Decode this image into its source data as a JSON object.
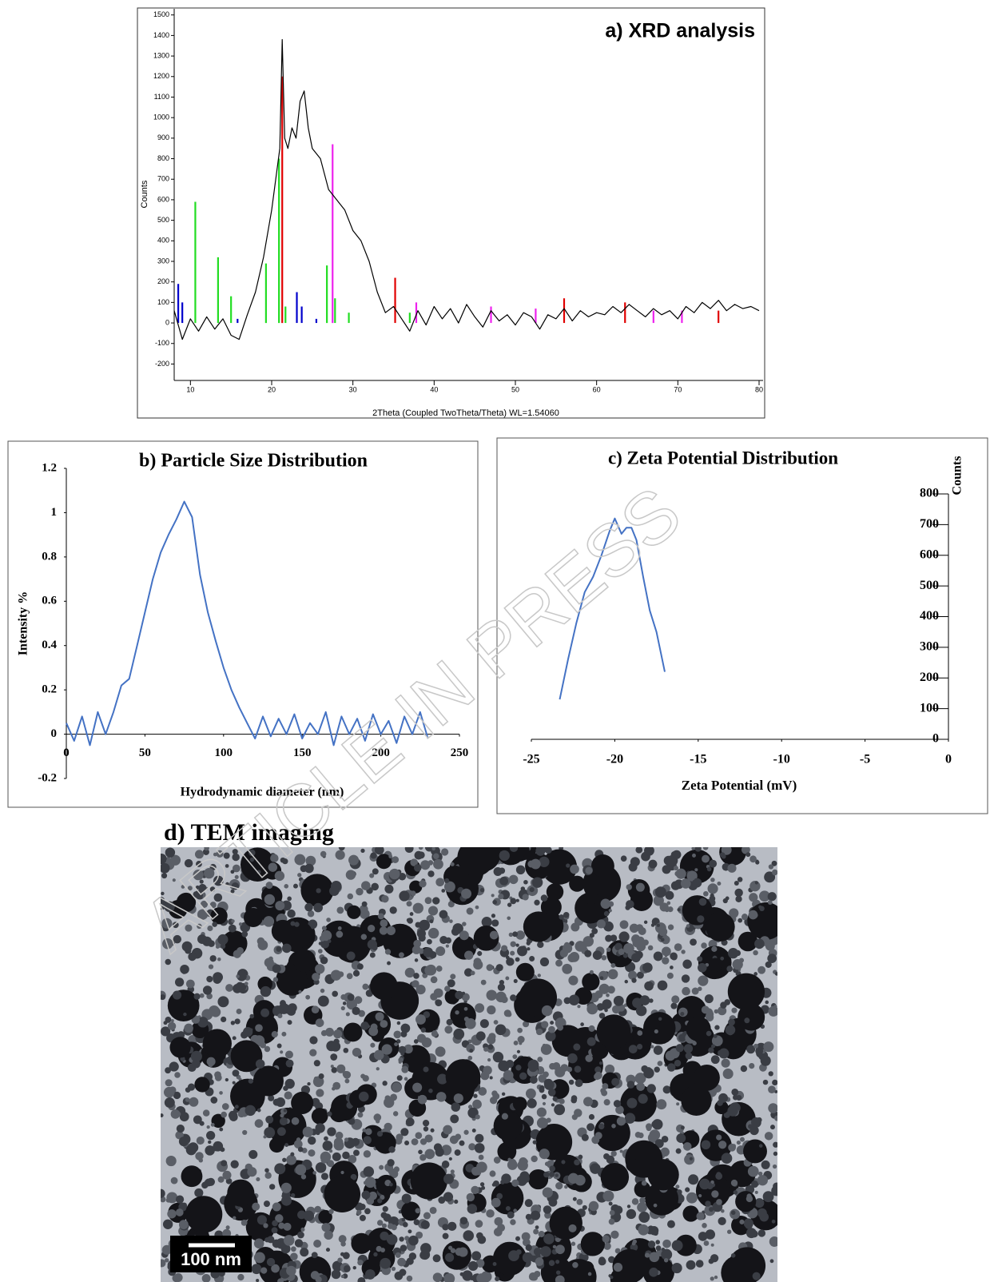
{
  "chart_data": [
    {
      "type": "line",
      "title": "a) XRD analysis",
      "x_label": "2Theta (Coupled TwoTheta/Theta) WL=1.54060",
      "y_label": "Counts",
      "xlim": [
        8,
        80
      ],
      "ylim": [
        -280,
        1530
      ],
      "xticks": [
        10,
        20,
        30,
        40,
        50,
        60,
        70,
        80
      ],
      "yticks": [
        -200,
        -100,
        0,
        100,
        200,
        300,
        400,
        500,
        600,
        700,
        800,
        900,
        1000,
        1100,
        1200,
        1300,
        1400,
        1500
      ],
      "series": [
        {
          "color": "#000000",
          "mode": "line",
          "x": [
            8,
            9,
            10,
            11,
            12,
            13,
            14,
            15,
            16,
            17,
            18,
            19,
            20,
            20.5,
            21,
            21.3,
            21.6,
            22,
            22.5,
            23,
            23.5,
            24,
            24.5,
            25,
            26,
            27,
            28,
            29,
            30,
            31,
            32,
            33,
            34,
            35,
            36,
            37,
            38,
            39,
            40,
            41,
            42,
            43,
            44,
            45,
            46,
            47,
            48,
            49,
            50,
            51,
            52,
            53,
            54,
            55,
            56,
            57,
            58,
            59,
            60,
            61,
            62,
            63,
            64,
            65,
            66,
            67,
            68,
            69,
            70,
            71,
            72,
            73,
            74,
            75,
            76,
            77,
            78,
            79,
            80
          ],
          "values": [
            60,
            -80,
            20,
            -40,
            30,
            -30,
            20,
            -60,
            -80,
            40,
            150,
            320,
            550,
            700,
            850,
            1380,
            900,
            850,
            950,
            900,
            1080,
            1130,
            950,
            850,
            800,
            650,
            600,
            550,
            450,
            400,
            300,
            150,
            50,
            80,
            20,
            -40,
            60,
            -10,
            80,
            20,
            70,
            0,
            90,
            30,
            -20,
            60,
            10,
            40,
            -10,
            50,
            30,
            -30,
            40,
            20,
            70,
            10,
            60,
            30,
            50,
            40,
            80,
            50,
            90,
            60,
            30,
            70,
            40,
            60,
            20,
            80,
            50,
            100,
            70,
            110,
            60,
            90,
            70,
            80,
            60
          ]
        },
        {
          "color": "#e00000",
          "mode": "stick",
          "x": [
            21.3,
            35.2,
            56,
            63.5,
            75
          ],
          "values": [
            1200,
            220,
            120,
            100,
            60
          ]
        },
        {
          "color": "#22dd22",
          "mode": "stick",
          "x": [
            10.6,
            13.4,
            15,
            19.3,
            20.9,
            21.7,
            26.8,
            27.8,
            29.5,
            37
          ],
          "values": [
            590,
            320,
            130,
            290,
            800,
            80,
            280,
            120,
            50,
            50
          ]
        },
        {
          "color": "#ee22ee",
          "mode": "stick",
          "x": [
            27.5,
            37.8,
            47,
            52.5,
            67,
            70.5
          ],
          "values": [
            870,
            100,
            80,
            70,
            60,
            60
          ]
        },
        {
          "color": "#0000cc",
          "mode": "stick",
          "x": [
            8.5,
            9,
            15.8,
            23.1,
            23.7,
            25.5
          ],
          "values": [
            190,
            100,
            20,
            150,
            80,
            20
          ]
        }
      ]
    },
    {
      "type": "line",
      "title": "b) Particle Size Distribution",
      "x_label": "Hydrodynamic diameter (nm)",
      "y_label": "Intensity %",
      "xlim": [
        0,
        250
      ],
      "ylim": [
        -0.2,
        1.2
      ],
      "xticks": [
        0,
        50,
        100,
        150,
        200,
        250
      ],
      "yticks": [
        -0.2,
        0,
        0.2,
        0.4,
        0.6,
        0.8,
        1,
        1.2
      ],
      "series": [
        {
          "color": "#4472c4",
          "mode": "line",
          "x": [
            0,
            5,
            10,
            15,
            20,
            25,
            30,
            35,
            40,
            45,
            50,
            55,
            60,
            65,
            70,
            75,
            80,
            85,
            90,
            95,
            100,
            105,
            110,
            115,
            120,
            125,
            130,
            135,
            140,
            145,
            150,
            155,
            160,
            165,
            170,
            175,
            180,
            185,
            190,
            195,
            200,
            205,
            210,
            215,
            220,
            225,
            230
          ],
          "values": [
            0.05,
            -0.03,
            0.08,
            -0.05,
            0.1,
            0,
            0.1,
            0.22,
            0.25,
            0.4,
            0.55,
            0.7,
            0.82,
            0.9,
            0.97,
            1.05,
            0.98,
            0.72,
            0.55,
            0.42,
            0.3,
            0.2,
            0.12,
            0.05,
            -0.02,
            0.08,
            -0.01,
            0.07,
            0,
            0.09,
            -0.02,
            0.05,
            0,
            0.1,
            -0.05,
            0.08,
            0,
            0.07,
            -0.03,
            0.09,
            0,
            0.06,
            -0.04,
            0.08,
            0,
            0.1,
            -0.02
          ]
        }
      ]
    },
    {
      "type": "line",
      "title": "c) Zeta Potential Distribution",
      "x_label": "Zeta Potential (mV)",
      "y_label": "Counts",
      "xlim": [
        -25,
        0
      ],
      "ylim": [
        0,
        800
      ],
      "xticks": [
        -25,
        -20,
        -15,
        -10,
        -5,
        0
      ],
      "yticks": [
        0,
        100,
        200,
        300,
        400,
        500,
        600,
        700,
        800
      ],
      "series": [
        {
          "color": "#4472c4",
          "mode": "line",
          "x": [
            -23.3,
            -22.8,
            -22.3,
            -21.8,
            -21.3,
            -20.8,
            -20.3,
            -20,
            -19.6,
            -19.3,
            -19,
            -18.7,
            -18.3,
            -17.9,
            -17.5,
            -17
          ],
          "values": [
            130,
            260,
            380,
            480,
            530,
            600,
            680,
            720,
            670,
            690,
            690,
            650,
            530,
            420,
            350,
            220
          ]
        }
      ]
    }
  ],
  "figure": {
    "tem_title": "d) TEM imaging",
    "scale_bar": "100 nm",
    "watermark": "ARTICLE IN PRESS"
  }
}
